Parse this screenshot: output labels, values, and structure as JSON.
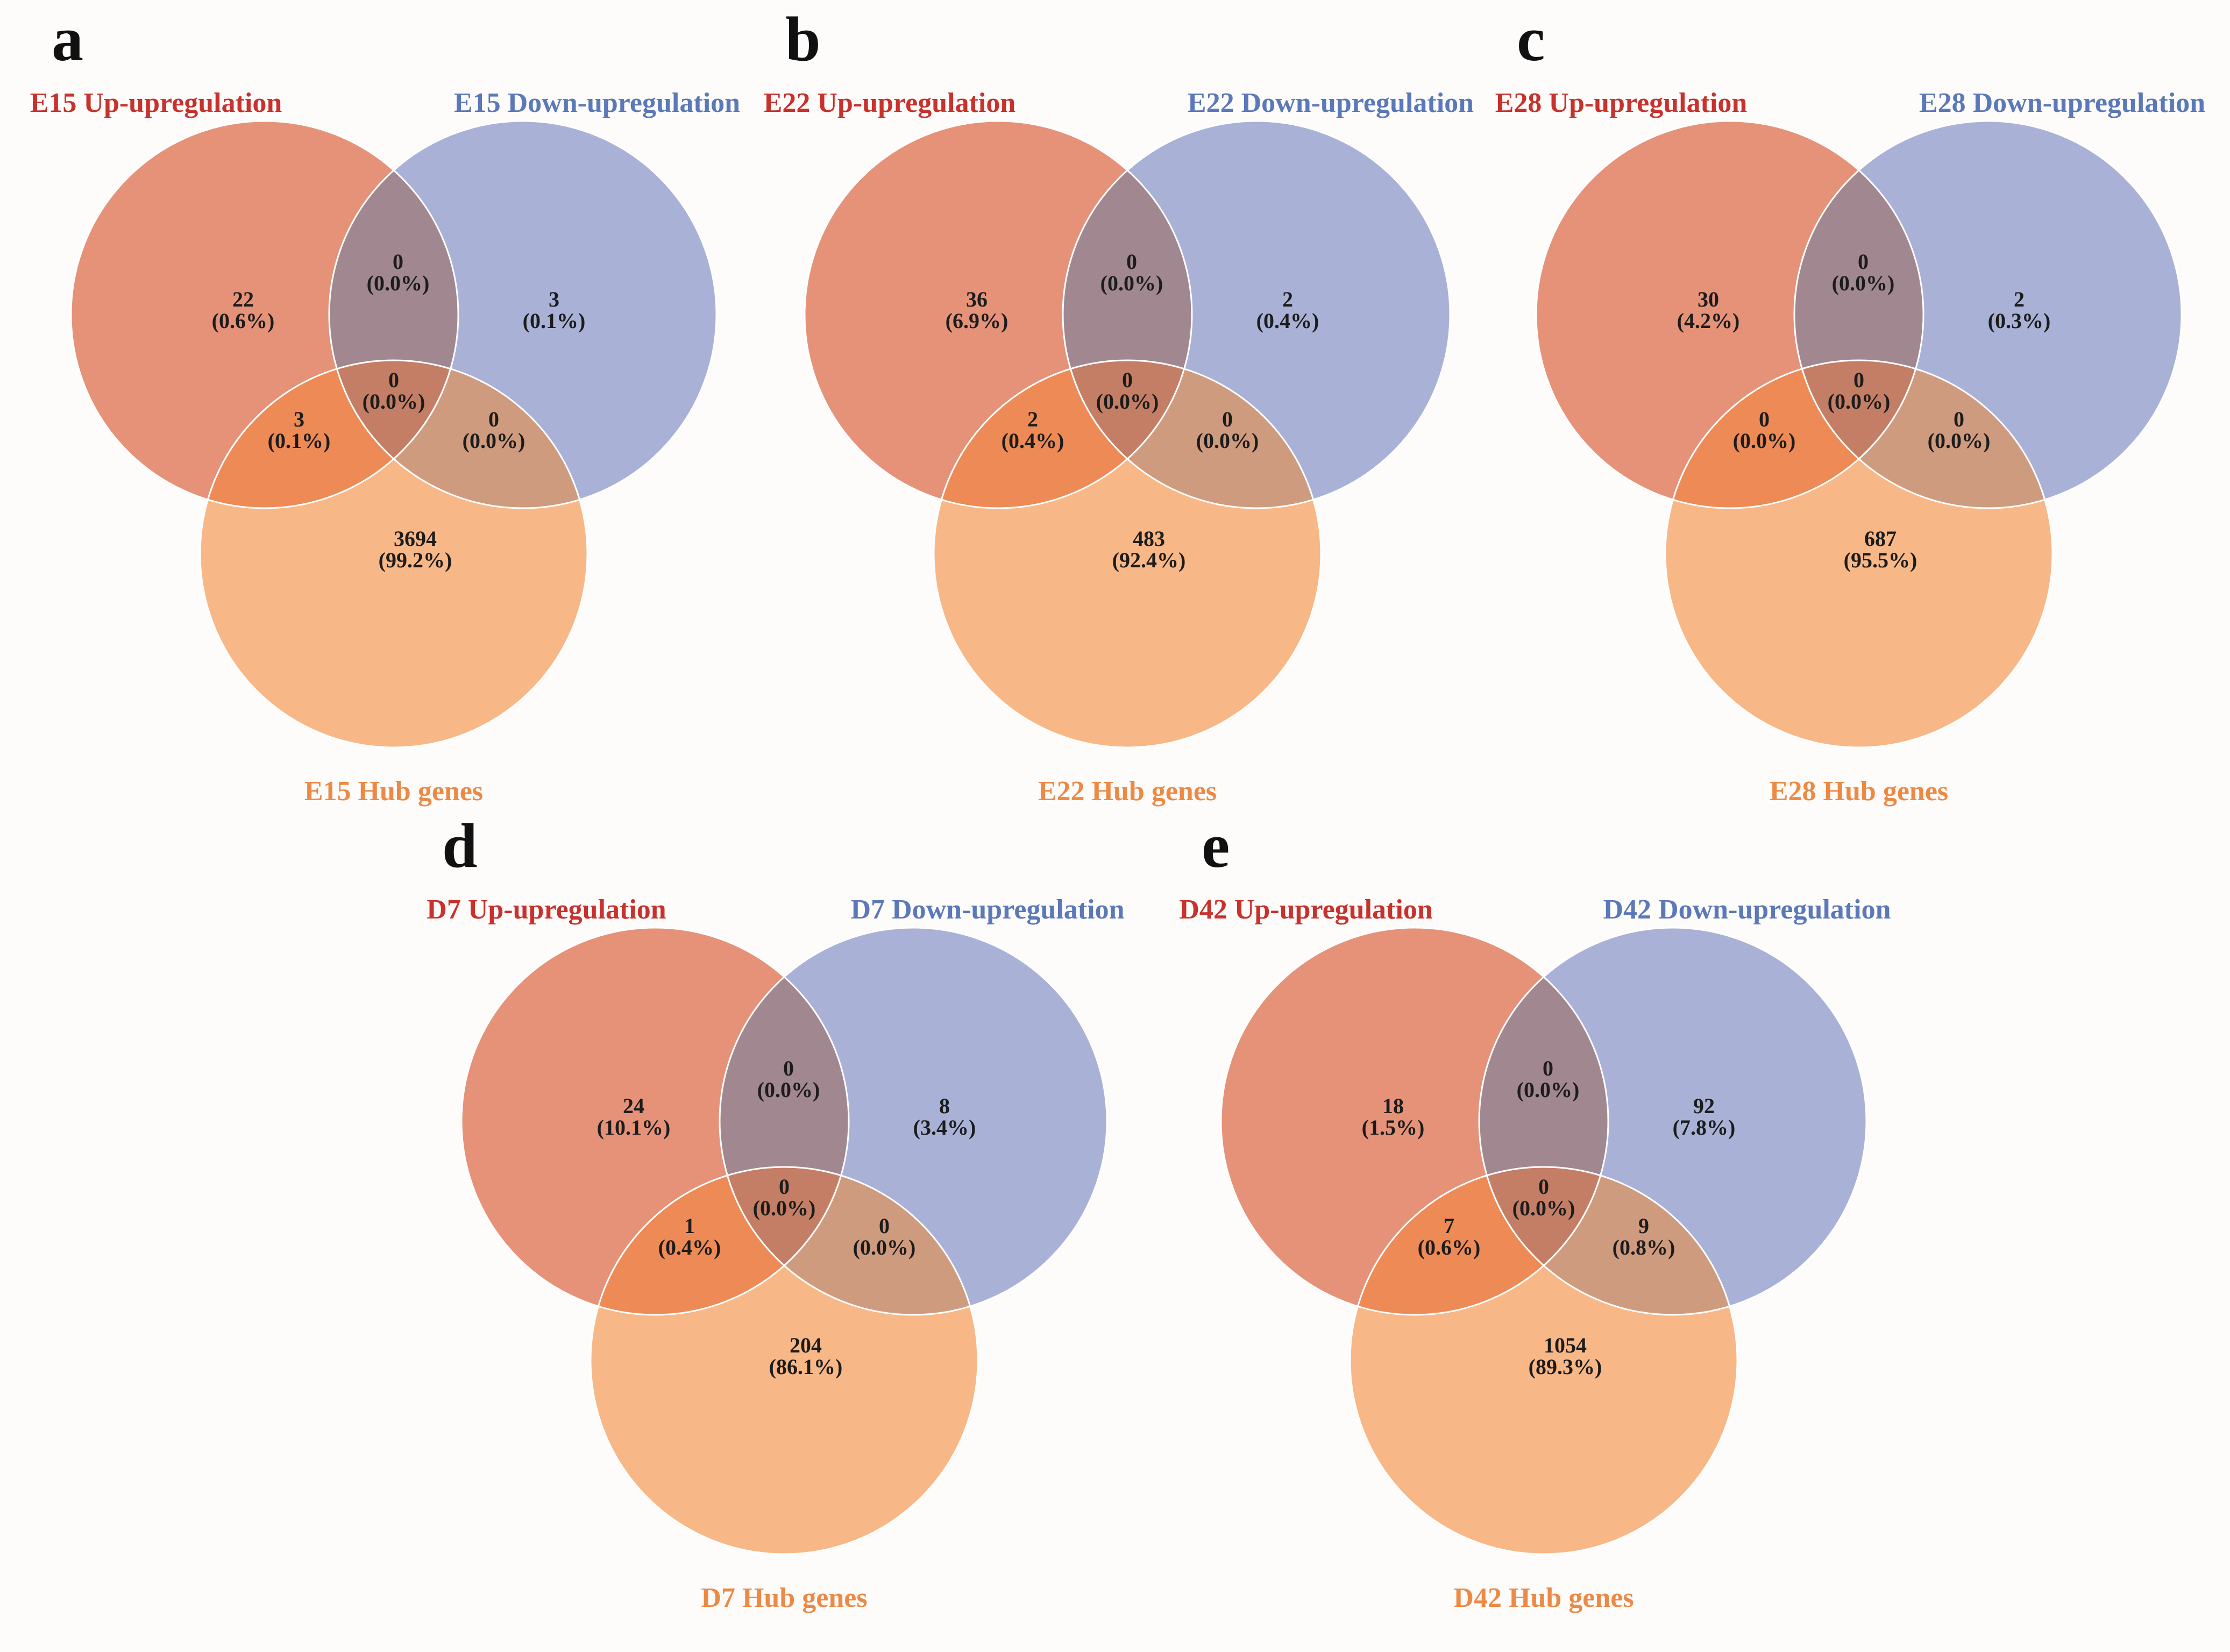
{
  "colors": {
    "set_a": "#e59279",
    "set_b": "#a9b2d6",
    "set_c": "#f8b787",
    "overlap_ab": "#a08790",
    "overlap_ac": "#ed8a55",
    "overlap_bc": "#cf9b7e",
    "overlap_abc": "#c47e65",
    "label_a": "#c8312c",
    "label_b": "#5b78b8",
    "label_c": "#ec8a45"
  },
  "panels": [
    {
      "letter": "a",
      "set_a_label": "E15 Up-upregulation",
      "set_b_label": "E15 Down-upregulation",
      "set_c_label": "E15 Hub genes",
      "regions": {
        "a_only": {
          "count": "22",
          "pct": "(0.6%)"
        },
        "b_only": {
          "count": "3",
          "pct": "(0.1%)"
        },
        "c_only": {
          "count": "3694",
          "pct": "(99.2%)"
        },
        "ab": {
          "count": "0",
          "pct": "(0.0%)"
        },
        "ac": {
          "count": "3",
          "pct": "(0.1%)"
        },
        "bc": {
          "count": "0",
          "pct": "(0.0%)"
        },
        "abc": {
          "count": "0",
          "pct": "(0.0%)"
        }
      }
    },
    {
      "letter": "b",
      "set_a_label": "E22 Up-upregulation",
      "set_b_label": "E22 Down-upregulation",
      "set_c_label": "E22 Hub genes",
      "regions": {
        "a_only": {
          "count": "36",
          "pct": "(6.9%)"
        },
        "b_only": {
          "count": "2",
          "pct": "(0.4%)"
        },
        "c_only": {
          "count": "483",
          "pct": "(92.4%)"
        },
        "ab": {
          "count": "0",
          "pct": "(0.0%)"
        },
        "ac": {
          "count": "2",
          "pct": "(0.4%)"
        },
        "bc": {
          "count": "0",
          "pct": "(0.0%)"
        },
        "abc": {
          "count": "0",
          "pct": "(0.0%)"
        }
      }
    },
    {
      "letter": "c",
      "set_a_label": "E28 Up-upregulation",
      "set_b_label": "E28 Down-upregulation",
      "set_c_label": "E28 Hub genes",
      "regions": {
        "a_only": {
          "count": "30",
          "pct": "(4.2%)"
        },
        "b_only": {
          "count": "2",
          "pct": "(0.3%)"
        },
        "c_only": {
          "count": "687",
          "pct": "(95.5%)"
        },
        "ab": {
          "count": "0",
          "pct": "(0.0%)"
        },
        "ac": {
          "count": "0",
          "pct": "(0.0%)"
        },
        "bc": {
          "count": "0",
          "pct": "(0.0%)"
        },
        "abc": {
          "count": "0",
          "pct": "(0.0%)"
        }
      }
    },
    {
      "letter": "d",
      "set_a_label": "D7 Up-upregulation",
      "set_b_label": "D7 Down-upregulation",
      "set_c_label": "D7 Hub genes",
      "regions": {
        "a_only": {
          "count": "24",
          "pct": "(10.1%)"
        },
        "b_only": {
          "count": "8",
          "pct": "(3.4%)"
        },
        "c_only": {
          "count": "204",
          "pct": "(86.1%)"
        },
        "ab": {
          "count": "0",
          "pct": "(0.0%)"
        },
        "ac": {
          "count": "1",
          "pct": "(0.4%)"
        },
        "bc": {
          "count": "0",
          "pct": "(0.0%)"
        },
        "abc": {
          "count": "0",
          "pct": "(0.0%)"
        }
      }
    },
    {
      "letter": "e",
      "set_a_label": "D42 Up-upregulation",
      "set_b_label": "D42 Down-upregulation",
      "set_c_label": "D42 Hub genes",
      "regions": {
        "a_only": {
          "count": "18",
          "pct": "(1.5%)"
        },
        "b_only": {
          "count": "92",
          "pct": "(7.8%)"
        },
        "c_only": {
          "count": "1054",
          "pct": "(89.3%)"
        },
        "ab": {
          "count": "0",
          "pct": "(0.0%)"
        },
        "ac": {
          "count": "7",
          "pct": "(0.6%)"
        },
        "bc": {
          "count": "9",
          "pct": "(0.8%)"
        },
        "abc": {
          "count": "0",
          "pct": "(0.0%)"
        }
      }
    }
  ]
}
